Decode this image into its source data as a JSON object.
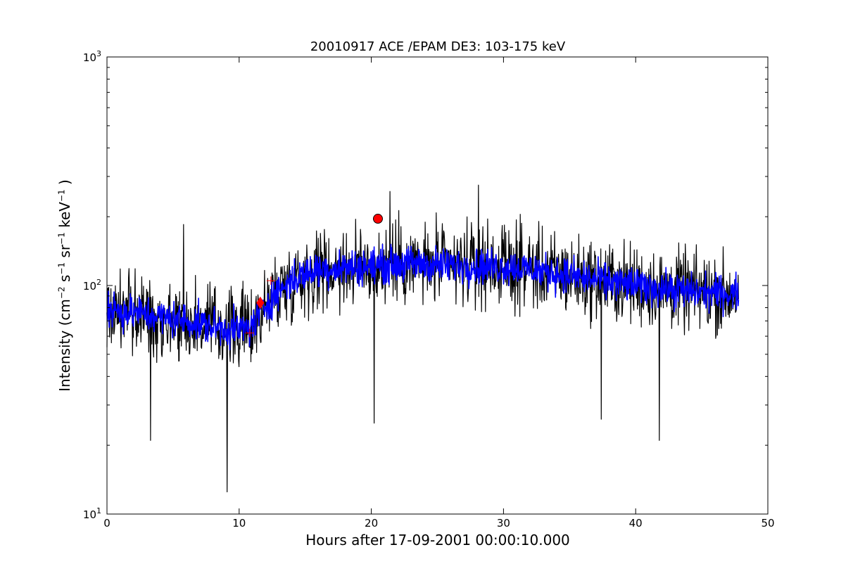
{
  "chart_data": {
    "type": "line",
    "title": "20010917 ACE /EPAM DE3: 103-175 keV",
    "xlabel": "Hours after 17-09-2001 00:00:10.000",
    "ylabel": {
      "prefix": "Intensity (cm",
      "exp1": "−2",
      "mid1": " s",
      "exp2": "−1",
      "mid2": " sr",
      "exp3": "−1",
      "mid3": " keV",
      "exp4": "−1",
      "suffix": " )"
    },
    "xlim": [
      0,
      50
    ],
    "ylim": [
      10,
      1000
    ],
    "yscale": "log",
    "grid": false,
    "x_ticks": [
      0,
      10,
      20,
      30,
      40,
      50
    ],
    "x_tick_labels": [
      "0",
      "10",
      "20",
      "30",
      "40",
      "50"
    ],
    "y_ticks": [
      10,
      100,
      1000
    ],
    "y_tick_labels": [
      {
        "base": "10",
        "exp": "1"
      },
      {
        "base": "10",
        "exp": "2"
      },
      {
        "base": "10",
        "exp": "3"
      }
    ],
    "series": [
      {
        "color": "#000000",
        "sample_interval_hours": 0.0333,
        "x_start": 0,
        "x_end": 47.8,
        "trend_x": [
          0,
          2,
          4,
          6,
          8,
          10,
          11,
          12,
          13,
          14,
          15,
          16,
          18,
          20,
          22,
          24,
          26,
          28,
          30,
          32,
          34,
          36,
          38,
          40,
          42,
          44,
          46,
          47.8
        ],
        "trend_y": [
          78,
          76,
          73,
          70,
          66,
          64,
          66,
          82,
          95,
          105,
          112,
          118,
          120,
          122,
          124,
          124,
          122,
          122,
          121,
          118,
          113,
          108,
          104,
          100,
          97,
          94,
          93,
          92
        ],
        "spread_factor": 1.45,
        "spikes": [
          {
            "x": 5.8,
            "y": 185
          },
          {
            "x": 9.1,
            "y": 12.5
          },
          {
            "x": 20.2,
            "y": 25
          },
          {
            "x": 21.4,
            "y": 258
          },
          {
            "x": 28.1,
            "y": 275
          },
          {
            "x": 37.4,
            "y": 26
          },
          {
            "x": 41.8,
            "y": 21
          },
          {
            "x": 3.3,
            "y": 21
          }
        ]
      },
      {
        "color": "#0000ff",
        "sample_interval_hours": 0.0333,
        "x_start": 0,
        "x_end": 47.8,
        "trend_x": [
          0,
          2,
          4,
          6,
          8,
          10,
          11,
          12,
          13,
          14,
          15,
          16,
          18,
          20,
          22,
          24,
          26,
          28,
          30,
          32,
          34,
          36,
          38,
          40,
          42,
          44,
          46,
          47.8
        ],
        "trend_y": [
          78,
          76,
          73,
          70,
          66,
          64,
          66,
          82,
          95,
          105,
          112,
          118,
          120,
          122,
          124,
          124,
          122,
          122,
          121,
          118,
          113,
          108,
          104,
          100,
          97,
          94,
          93,
          92
        ],
        "spread_factor": 1.18
      }
    ],
    "markers": [
      {
        "shape": "circle",
        "x": 20.5,
        "y": 196,
        "color": "#ff0000"
      },
      {
        "shape": "diamond",
        "x": 11.6,
        "y": 84,
        "color": "#ff0000"
      },
      {
        "shape": "plus",
        "x": 10.8,
        "y": 62,
        "color": "#ff0000"
      },
      {
        "shape": "plus",
        "x": 12.4,
        "y": 105,
        "color": "#ff0000"
      }
    ]
  }
}
